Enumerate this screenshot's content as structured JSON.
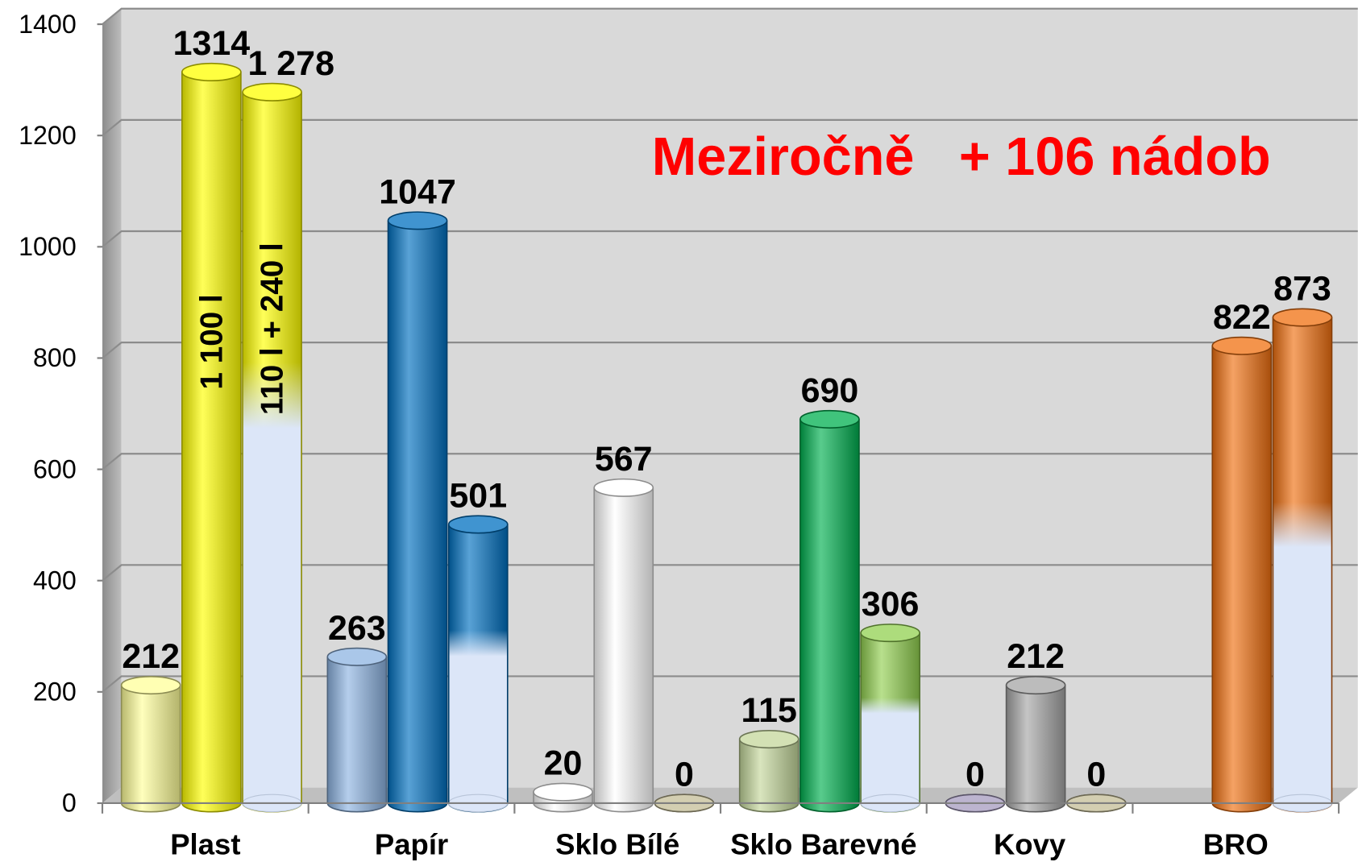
{
  "chart_data": {
    "type": "cylinder_bar",
    "categories": [
      "Plast",
      "Papír",
      "Sklo Bílé",
      "Sklo Barevné",
      "Kovy",
      "BRO"
    ],
    "series": [
      {
        "values": [
          212,
          263,
          20,
          115,
          0,
          null
        ],
        "colors": [
          "#ffff99",
          "#8db4e2",
          "#ffffff",
          "#c4d79b",
          "#a59bbf",
          null
        ]
      },
      {
        "values": [
          1314,
          1047,
          567,
          690,
          212,
          822
        ],
        "colors": [
          "#ffff00",
          "#0070c0",
          "#ffffff",
          "#00b050",
          "#a6a6a6",
          "#f07010"
        ]
      },
      {
        "values": [
          1278,
          501,
          0,
          306,
          0,
          873
        ],
        "value_labels": [
          "1 278",
          "501",
          "0",
          "306",
          "0",
          "873"
        ],
        "colors": [
          "#ffff00",
          "#0070c0",
          "#c4bd97",
          "#92d050",
          "#c4bd97",
          "#f07010"
        ],
        "base_color": "#dce6f8"
      }
    ],
    "ylim": [
      0,
      1400
    ],
    "yticks": [
      0,
      200,
      400,
      600,
      800,
      1000,
      1200,
      1400
    ],
    "grid": true,
    "annotations": [
      {
        "text": "Meziročně   + 106 nádob",
        "color": "#ff0000"
      },
      {
        "text": "1 100 l"
      },
      {
        "text": "110 l + 240 l"
      }
    ]
  }
}
